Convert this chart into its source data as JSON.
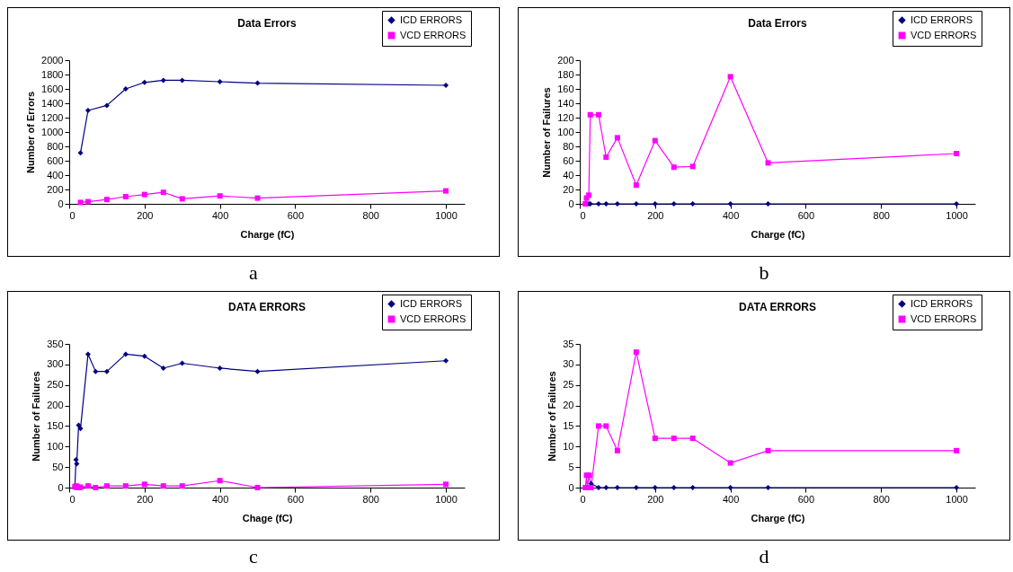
{
  "chart_data": [
    {
      "type": "line",
      "title": "Data Errors",
      "xlabel": "Charge (fC)",
      "ylabel": "Number of Errors",
      "x": [
        30,
        50,
        100,
        150,
        200,
        250,
        300,
        400,
        500,
        1000
      ],
      "xlim": [
        0,
        1050
      ],
      "xticks": [
        0,
        200,
        400,
        600,
        800,
        1000
      ],
      "ylim": [
        0,
        2000
      ],
      "yticks": [
        0,
        200,
        400,
        600,
        800,
        1000,
        1200,
        1400,
        1600,
        1800,
        2000
      ],
      "legend": "top right",
      "annotations": [
        "a"
      ],
      "series": [
        {
          "name": "ICD ERRORS",
          "color": "#000080",
          "marker": "diamond",
          "values": [
            710,
            1300,
            1370,
            1600,
            1690,
            1720,
            1720,
            1700,
            1680,
            1650
          ]
        },
        {
          "name": "VCD ERRORS",
          "color": "#ff00ff",
          "marker": "square",
          "values": [
            20,
            30,
            60,
            100,
            130,
            160,
            70,
            110,
            80,
            180
          ]
        }
      ]
    },
    {
      "type": "line",
      "title": "Data Errors",
      "xlabel": "Charge (fC)",
      "ylabel": "Number of Failures",
      "x": [
        15,
        18,
        24,
        28,
        50,
        70,
        100,
        150,
        200,
        250,
        300,
        400,
        500,
        1000
      ],
      "xlim": [
        0,
        1050
      ],
      "xticks": [
        0,
        200,
        400,
        600,
        800,
        1000
      ],
      "ylim": [
        0,
        200
      ],
      "yticks": [
        0,
        20,
        40,
        60,
        80,
        100,
        120,
        140,
        160,
        180,
        200
      ],
      "legend": "top right",
      "annotations": [
        "b"
      ],
      "series": [
        {
          "name": "ICD ERRORS",
          "color": "#000080",
          "marker": "diamond",
          "values": [
            0,
            0,
            0,
            0,
            0,
            0,
            0,
            0,
            0,
            0,
            0,
            0,
            0,
            0
          ]
        },
        {
          "name": "VCD ERRORS",
          "color": "#ff00ff",
          "marker": "square",
          "values": [
            0,
            8,
            12,
            124,
            124,
            65,
            92,
            26,
            88,
            51,
            52,
            177,
            57,
            70
          ]
        }
      ]
    },
    {
      "type": "line",
      "title": "DATA ERRORS",
      "xlabel": "Chage (fC)",
      "ylabel": "Number of Failures",
      "x": [
        15,
        18,
        20,
        25,
        30,
        50,
        70,
        100,
        150,
        200,
        250,
        300,
        400,
        500,
        1000
      ],
      "xlim": [
        0,
        1050
      ],
      "xticks": [
        0,
        200,
        400,
        600,
        800,
        1000
      ],
      "ylim": [
        0,
        350
      ],
      "yticks": [
        0,
        50,
        100,
        150,
        200,
        250,
        300,
        350
      ],
      "legend": "top right",
      "annotations": [
        "c"
      ],
      "series": [
        {
          "name": "ICD ERRORS",
          "color": "#000080",
          "marker": "diamond",
          "values": [
            0,
            68,
            58,
            152,
            144,
            325,
            283,
            283,
            325,
            320,
            291,
            303,
            291,
            283,
            309
          ]
        },
        {
          "name": "VCD ERRORS",
          "color": "#ff00ff",
          "marker": "square",
          "values": [
            2,
            4,
            3,
            0,
            1,
            4,
            0,
            4,
            4,
            8,
            4,
            4,
            17,
            0,
            8
          ]
        }
      ]
    },
    {
      "type": "line",
      "title": "DATA ERRORS",
      "xlabel": "Charge (fC)",
      "ylabel": "Number of Failures",
      "x": [
        15,
        18,
        20,
        25,
        30,
        50,
        70,
        100,
        150,
        200,
        250,
        300,
        400,
        500,
        1000
      ],
      "xlim": [
        0,
        1050
      ],
      "xticks": [
        0,
        200,
        400,
        600,
        800,
        1000
      ],
      "ylim": [
        0,
        35
      ],
      "yticks": [
        0,
        5,
        10,
        15,
        20,
        25,
        30,
        35
      ],
      "legend": "top right",
      "annotations": [
        "d"
      ],
      "series": [
        {
          "name": "ICD ERRORS",
          "color": "#000080",
          "marker": "diamond",
          "values": [
            null,
            null,
            null,
            0,
            1,
            0,
            0,
            0,
            0,
            0,
            0,
            0,
            0,
            0,
            0
          ]
        },
        {
          "name": "VCD ERRORS",
          "color": "#ff00ff",
          "marker": "square",
          "values": [
            0,
            3,
            0,
            3,
            0,
            15,
            15,
            9,
            33,
            12,
            12,
            12,
            6,
            9,
            9
          ]
        }
      ]
    }
  ]
}
